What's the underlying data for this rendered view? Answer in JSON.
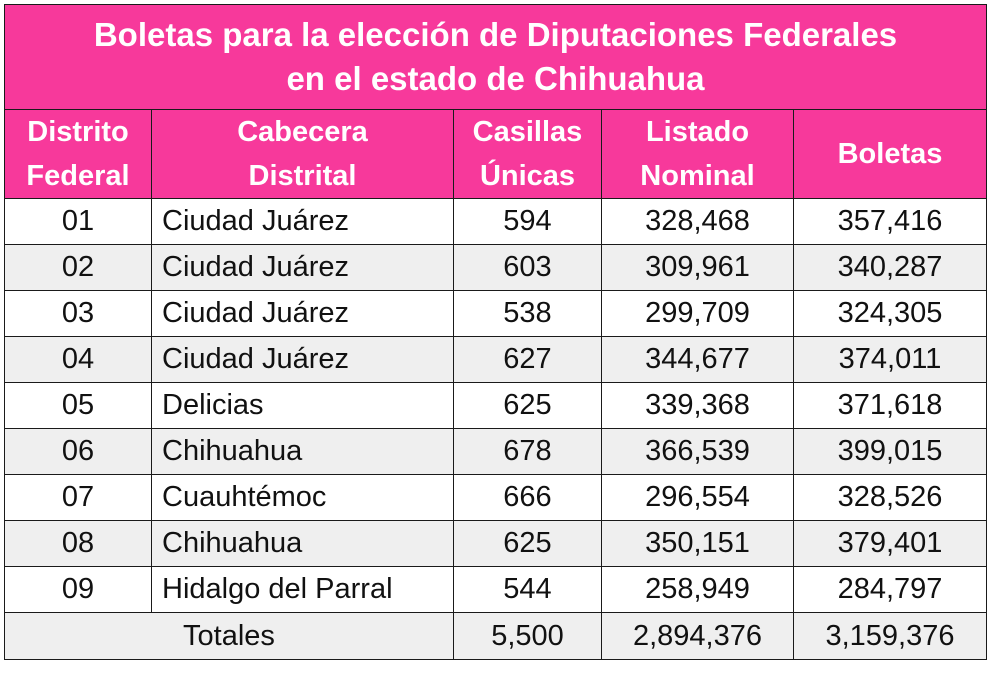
{
  "title": {
    "line1": "Boletas para la elección de Diputaciones Federales",
    "line2": "en el estado de Chihuahua"
  },
  "colors": {
    "header_bg": "#f7399b",
    "header_text": "#ffffff",
    "alt_row": "#efefef"
  },
  "headers": [
    {
      "line1": "Distrito",
      "line2": "Federal"
    },
    {
      "line1": "Cabecera",
      "line2": "Distrital"
    },
    {
      "line1": "Casillas",
      "line2": "Únicas"
    },
    {
      "line1": "Listado",
      "line2": "Nominal"
    },
    {
      "line1": "Boletas",
      "line2": ""
    }
  ],
  "rows": [
    [
      "01",
      "Ciudad Juárez",
      "594",
      "328,468",
      "357,416"
    ],
    [
      "02",
      "Ciudad Juárez",
      "603",
      "309,961",
      "340,287"
    ],
    [
      "03",
      "Ciudad Juárez",
      "538",
      "299,709",
      "324,305"
    ],
    [
      "04",
      "Ciudad Juárez",
      "627",
      "344,677",
      "374,011"
    ],
    [
      "05",
      "Delicias",
      "625",
      "339,368",
      "371,618"
    ],
    [
      "06",
      "Chihuahua",
      "678",
      "366,539",
      "399,015"
    ],
    [
      "07",
      "Cuauhtémoc",
      "666",
      "296,554",
      "328,526"
    ],
    [
      "08",
      "Chihuahua",
      "625",
      "350,151",
      "379,401"
    ],
    [
      "09",
      "Hidalgo del Parral",
      "544",
      "258,949",
      "284,797"
    ]
  ],
  "totals": {
    "label": "Totales",
    "casillas": "5,500",
    "listado": "2,894,376",
    "boletas": "3,159,376"
  }
}
